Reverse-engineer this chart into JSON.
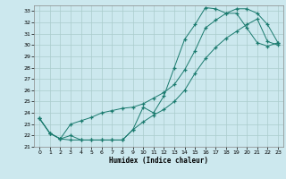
{
  "title": "",
  "xlabel": "Humidex (Indice chaleur)",
  "bg_color": "#cce8ee",
  "grid_color": "#aacccc",
  "line_color": "#1a7a6e",
  "xlim": [
    -0.5,
    23.5
  ],
  "ylim": [
    21,
    33.5
  ],
  "xticks": [
    0,
    1,
    2,
    3,
    4,
    5,
    6,
    7,
    8,
    9,
    10,
    11,
    12,
    13,
    14,
    15,
    16,
    17,
    18,
    19,
    20,
    21,
    22,
    23
  ],
  "yticks": [
    21,
    22,
    23,
    24,
    25,
    26,
    27,
    28,
    29,
    30,
    31,
    32,
    33
  ],
  "curve1_x": [
    0,
    1,
    2,
    3,
    4,
    5,
    6,
    7,
    8,
    9,
    10,
    11,
    12,
    13,
    14,
    15,
    16,
    17,
    18,
    19,
    20,
    21,
    22,
    23
  ],
  "curve1_y": [
    23.5,
    22.2,
    21.7,
    22.0,
    21.6,
    21.6,
    21.6,
    21.6,
    21.6,
    22.5,
    24.5,
    24.0,
    25.5,
    28.0,
    30.5,
    31.8,
    33.3,
    33.2,
    32.8,
    32.8,
    31.5,
    30.2,
    29.9,
    30.2
  ],
  "curve2_x": [
    0,
    1,
    2,
    3,
    4,
    5,
    6,
    7,
    8,
    9,
    10,
    11,
    12,
    13,
    14,
    15,
    16,
    17,
    18,
    19,
    20,
    21,
    22,
    23
  ],
  "curve2_y": [
    23.5,
    22.2,
    21.7,
    23.0,
    23.3,
    23.6,
    24.0,
    24.2,
    24.4,
    24.5,
    24.8,
    25.3,
    25.8,
    26.5,
    27.8,
    29.5,
    31.5,
    32.2,
    32.8,
    33.2,
    33.2,
    32.8,
    31.8,
    30.2
  ],
  "curve3_x": [
    0,
    1,
    2,
    3,
    4,
    5,
    6,
    7,
    8,
    9,
    10,
    11,
    12,
    13,
    14,
    15,
    16,
    17,
    18,
    19,
    20,
    21,
    22,
    23
  ],
  "curve3_y": [
    23.5,
    22.2,
    21.7,
    21.6,
    21.6,
    21.6,
    21.6,
    21.6,
    21.6,
    22.5,
    23.2,
    23.8,
    24.3,
    25.0,
    26.0,
    27.5,
    28.8,
    29.8,
    30.6,
    31.2,
    31.8,
    32.3,
    30.3,
    30.0
  ]
}
